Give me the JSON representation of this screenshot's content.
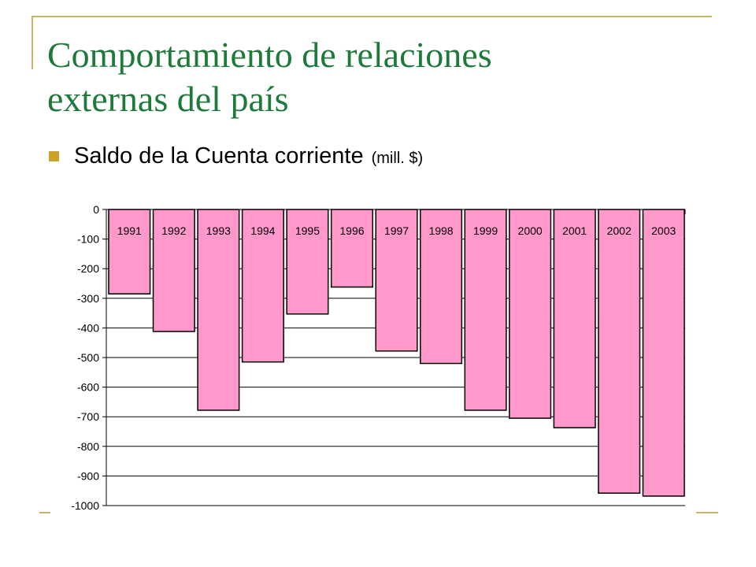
{
  "slide": {
    "title_line1": "Comportamiento de relaciones",
    "title_line2": "externas del país",
    "bullet_text": "Saldo de la Cuenta corriente",
    "bullet_unit": "(mill. $)",
    "accent_color": "#c9b26a",
    "title_color": "#1e7a3a"
  },
  "chart_data": {
    "type": "bar",
    "categories": [
      "1991",
      "1992",
      "1993",
      "1994",
      "1995",
      "1996",
      "1997",
      "1998",
      "1999",
      "2000",
      "2001",
      "2002",
      "2003"
    ],
    "values": [
      -285,
      -412,
      -678,
      -515,
      -353,
      -262,
      -478,
      -520,
      -678,
      -705,
      -737,
      -958,
      -968
    ],
    "ylim": [
      -1000,
      0
    ],
    "yticks": [
      0,
      -100,
      -200,
      -300,
      -400,
      -500,
      -600,
      -700,
      -800,
      -900,
      -1000
    ],
    "ytick_labels": [
      "0",
      "-100",
      "-200",
      "-300",
      "-400",
      "-500",
      "-600",
      "-700",
      "-800",
      "-900",
      "-1000"
    ],
    "grid": true,
    "bar_color": "#ff99cc",
    "category_labels_position": "top inside bars"
  }
}
